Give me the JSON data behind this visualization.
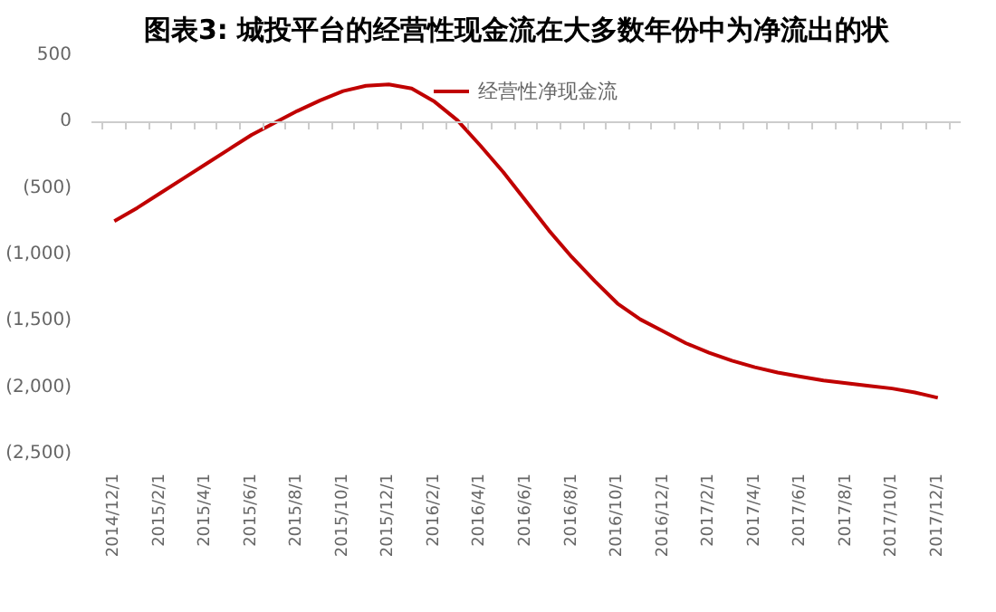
{
  "chart_data": {
    "type": "line",
    "title": "图表3:   城投平台的经营性现金流在大多数年份中为净流出的状",
    "categories": [
      "2014/12/1",
      null,
      "2015/2/1",
      null,
      "2015/4/1",
      null,
      "2015/6/1",
      null,
      "2015/8/1",
      null,
      "2015/10/1",
      null,
      "2015/12/1",
      null,
      "2016/2/1",
      null,
      "2016/4/1",
      null,
      "2016/6/1",
      null,
      "2016/8/1",
      null,
      "2016/10/1",
      null,
      "2016/12/1",
      null,
      "2017/2/1",
      null,
      "2017/4/1",
      null,
      "2017/6/1",
      null,
      "2017/8/1",
      null,
      "2017/10/1",
      null,
      "2017/12/1"
    ],
    "series": [
      {
        "name": "经营性净现金流",
        "color": "#c00000",
        "values": [
          -750,
          -650,
          -540,
          -430,
          -320,
          -210,
          -100,
          -10,
          80,
          160,
          230,
          270,
          280,
          250,
          150,
          10,
          -180,
          -380,
          -600,
          -820,
          -1020,
          -1200,
          -1370,
          -1490,
          -1580,
          -1670,
          -1740,
          -1800,
          -1850,
          -1890,
          -1920,
          -1950,
          -1970,
          -1990,
          -2010,
          -2040,
          -2080
        ]
      }
    ],
    "ylim": [
      -2500,
      500
    ],
    "yticks": [
      500,
      0,
      {
        "value": -500,
        "label": "(500)"
      },
      {
        "value": -1000,
        "label": "(1,000)"
      },
      {
        "value": -1500,
        "label": "(1,500)"
      },
      {
        "value": -2000,
        "label": "(2,000)"
      },
      {
        "value": -2500,
        "label": "(2,500)"
      }
    ],
    "legend": "top",
    "marker": "none",
    "line_style": "solid"
  }
}
